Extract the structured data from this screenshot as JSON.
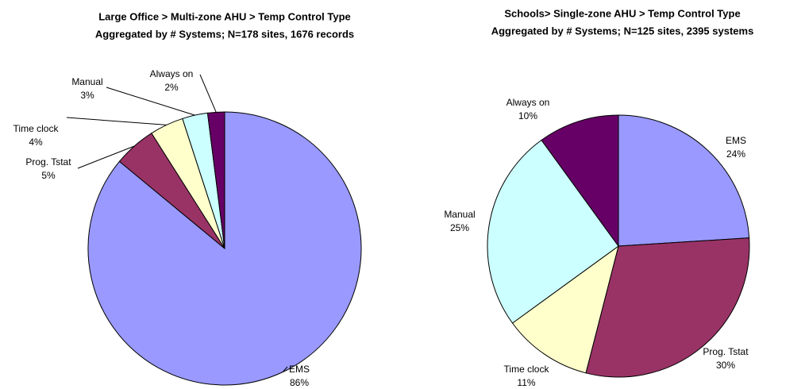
{
  "chart_data": [
    {
      "type": "pie",
      "title": [
        "Large Office > Multi-zone AHU > Temp Control Type",
        "Aggregated by # Systems; N=178 sites, 1676 records"
      ],
      "categories": [
        "EMS",
        "Prog. Tstat",
        "Time clock",
        "Manual",
        "Always on"
      ],
      "values": [
        86,
        5,
        4,
        3,
        2
      ],
      "value_labels": [
        "86%",
        "5%",
        "4%",
        "3%",
        "2%"
      ],
      "colors": [
        "#9999ff",
        "#993366",
        "#ffffcc",
        "#ccffff",
        "#660066"
      ]
    },
    {
      "type": "pie",
      "title": [
        "Schools> Single-zone AHU > Temp Control Type",
        "Aggregated by # Systems; N=125 sites, 2395 systems"
      ],
      "categories": [
        "EMS",
        "Prog. Tstat",
        "Time clock",
        "Manual",
        "Always on"
      ],
      "values": [
        24,
        30,
        11,
        25,
        10
      ],
      "value_labels": [
        "24%",
        "30%",
        "11%",
        "25%",
        "10%"
      ],
      "colors": [
        "#9999ff",
        "#993366",
        "#ffffcc",
        "#ccffff",
        "#660066"
      ]
    }
  ]
}
